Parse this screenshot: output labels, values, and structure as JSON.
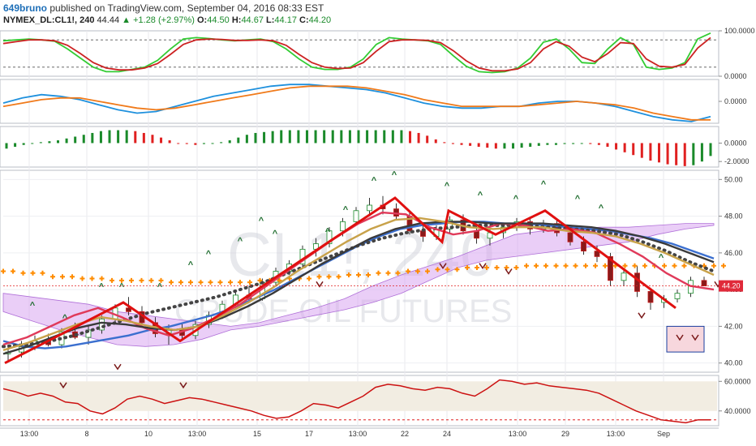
{
  "header": {
    "author": "649bruno",
    "published_text": "published on TradingView.com, September 04, 2016 08:33 EST",
    "symbol": "NYMEX_DL:CL1!, 240",
    "last": "44.44",
    "change": "+1.28 (+2.97%)",
    "open_label": "O:",
    "open_value": "44.50",
    "high_label": "H:",
    "high_value": "44.67",
    "low_label": "L:",
    "low_value": "44.17",
    "close_label": "C:",
    "close_value": "44.20"
  },
  "watermark": {
    "symbol": "CL1!, 240",
    "name": "CRUDE OIL FUTURES"
  },
  "chart_data": [
    {
      "type": "line",
      "panel": "stochastic",
      "y_ticks": [
        "100.0000",
        "0.0000"
      ],
      "ylim": [
        0,
        100
      ],
      "reference_lines": [
        80,
        20
      ],
      "series": [
        {
          "color": "#33cc33",
          "values": [
            78,
            80,
            82,
            80,
            77,
            60,
            40,
            20,
            10,
            10,
            15,
            20,
            35,
            60,
            82,
            85,
            83,
            80,
            78,
            80,
            82,
            76,
            60,
            38,
            20,
            15,
            15,
            20,
            38,
            70,
            85,
            82,
            80,
            78,
            70,
            45,
            22,
            10,
            8,
            10,
            18,
            40,
            75,
            82,
            60,
            30,
            28,
            60,
            85,
            70,
            20,
            15,
            18,
            30,
            82,
            95
          ]
        },
        {
          "color": "#cc2222",
          "values": [
            72,
            76,
            80,
            80,
            78,
            68,
            50,
            30,
            18,
            14,
            14,
            18,
            28,
            48,
            70,
            80,
            82,
            81,
            79,
            79,
            80,
            78,
            68,
            48,
            30,
            20,
            17,
            18,
            30,
            55,
            76,
            80,
            80,
            79,
            74,
            56,
            34,
            18,
            12,
            12,
            16,
            30,
            60,
            76,
            66,
            42,
            32,
            50,
            74,
            72,
            38,
            22,
            20,
            26,
            62,
            85
          ]
        }
      ]
    },
    {
      "type": "line",
      "panel": "macd",
      "y_ticks": [
        "0.0000"
      ],
      "ylim": [
        -1.3,
        1.3
      ],
      "series": [
        {
          "color": "#1e90dd",
          "values": [
            -0.1,
            0.2,
            0.4,
            0.3,
            0.1,
            -0.2,
            -0.5,
            -0.7,
            -0.6,
            -0.3,
            0.0,
            0.3,
            0.5,
            0.7,
            0.9,
            1.0,
            1.0,
            0.9,
            0.8,
            0.7,
            0.5,
            0.2,
            -0.1,
            -0.3,
            -0.4,
            -0.4,
            -0.3,
            -0.3,
            -0.1,
            0.0,
            0.0,
            -0.1,
            -0.3,
            -0.6,
            -0.9,
            -1.1,
            -1.2,
            -0.9
          ]
        },
        {
          "color": "#f07a1a",
          "values": [
            -0.3,
            -0.1,
            0.1,
            0.2,
            0.2,
            0.0,
            -0.2,
            -0.4,
            -0.5,
            -0.4,
            -0.2,
            0.0,
            0.2,
            0.4,
            0.6,
            0.8,
            0.9,
            0.9,
            0.9,
            0.8,
            0.6,
            0.4,
            0.1,
            -0.1,
            -0.3,
            -0.3,
            -0.3,
            -0.3,
            -0.2,
            -0.1,
            0.0,
            -0.1,
            -0.2,
            -0.4,
            -0.7,
            -0.9,
            -1.1,
            -1.1
          ]
        }
      ]
    },
    {
      "type": "bar",
      "panel": "histogram",
      "y_ticks": [
        "0.0000",
        "-2.0000"
      ],
      "ylim": [
        -2.6,
        1.8
      ],
      "values": [
        -0.6,
        -0.4,
        -0.2,
        0.0,
        0.1,
        0.2,
        0.3,
        0.5,
        0.7,
        0.9,
        1.1,
        1.3,
        1.4,
        1.4,
        1.4,
        1.3,
        1.1,
        0.9,
        0.6,
        0.3,
        0.0,
        -0.1,
        -0.2,
        -0.1,
        0.0,
        0.1,
        0.3,
        0.6,
        0.9,
        1.1,
        1.2,
        1.3,
        1.4,
        1.4,
        1.4,
        1.4,
        1.4,
        1.4,
        1.4,
        1.4,
        1.4,
        1.4,
        1.4,
        1.4,
        1.4,
        1.4,
        1.4,
        1.3,
        1.1,
        0.8,
        0.4,
        0.1,
        -0.1,
        -0.2,
        -0.3,
        -0.4,
        -0.5,
        -0.6,
        -0.6,
        -0.6,
        -0.5,
        -0.4,
        -0.3,
        -0.2,
        -0.2,
        -0.1,
        -0.1,
        0.0,
        -0.1,
        -0.2,
        -0.4,
        -0.7,
        -1.0,
        -1.3,
        -1.6,
        -1.9,
        -2.1,
        -2.3,
        -2.4,
        -2.5,
        -2.4,
        -2.0,
        -1.4
      ],
      "up_color": "#1a8a2a",
      "down_color": "#e02020"
    },
    {
      "type": "candlestick",
      "panel": "price",
      "y_ticks": [
        "50.00",
        "48.00",
        "46.00",
        "44.00",
        "42.00",
        "40.00"
      ],
      "ylim": [
        39.5,
        50.5
      ],
      "current_price_label": "44.20",
      "x_ticks": [
        "13:00",
        "8",
        "10",
        "13:00",
        "15",
        "17",
        "13:00",
        "22",
        "24",
        "13:00",
        "29",
        "13:00",
        "Sep"
      ],
      "ohlc": [
        [
          40.5,
          41.0,
          40.1,
          40.6
        ],
        [
          40.6,
          41.2,
          40.3,
          40.9
        ],
        [
          40.9,
          41.5,
          40.7,
          41.2
        ],
        [
          41.2,
          41.6,
          40.9,
          41.0
        ],
        [
          41.0,
          41.9,
          40.8,
          41.7
        ],
        [
          41.7,
          42.2,
          41.3,
          41.4
        ],
        [
          41.4,
          42.0,
          41.0,
          41.8
        ],
        [
          41.8,
          42.6,
          41.6,
          42.4
        ],
        [
          42.4,
          43.2,
          42.2,
          43.0
        ],
        [
          43.0,
          43.6,
          42.6,
          42.8
        ],
        [
          42.8,
          43.1,
          42.0,
          42.2
        ],
        [
          42.2,
          42.5,
          41.4,
          41.6
        ],
        [
          41.6,
          42.1,
          41.0,
          41.8
        ],
        [
          41.8,
          42.2,
          41.2,
          41.5
        ],
        [
          41.5,
          42.3,
          41.3,
          42.1
        ],
        [
          42.1,
          42.8,
          41.9,
          42.6
        ],
        [
          42.6,
          43.4,
          42.4,
          43.2
        ],
        [
          43.2,
          43.9,
          43.0,
          43.7
        ],
        [
          43.7,
          44.2,
          43.3,
          43.5
        ],
        [
          43.5,
          44.6,
          43.4,
          44.4
        ],
        [
          44.4,
          45.2,
          44.2,
          45.0
        ],
        [
          45.0,
          45.6,
          44.8,
          45.4
        ],
        [
          45.4,
          46.4,
          45.2,
          46.2
        ],
        [
          46.2,
          46.8,
          45.8,
          46.5
        ],
        [
          46.5,
          47.4,
          46.3,
          47.2
        ],
        [
          47.2,
          47.9,
          46.9,
          47.7
        ],
        [
          47.7,
          48.5,
          47.5,
          48.3
        ],
        [
          48.3,
          49.0,
          48.0,
          48.6
        ],
        [
          48.6,
          49.1,
          48.1,
          48.4
        ],
        [
          48.4,
          48.7,
          47.8,
          48.0
        ],
        [
          48.0,
          48.2,
          47.0,
          47.2
        ],
        [
          47.2,
          47.6,
          46.6,
          46.9
        ],
        [
          46.9,
          47.5,
          46.7,
          47.3
        ],
        [
          47.3,
          48.0,
          47.1,
          47.8
        ],
        [
          47.8,
          48.1,
          47.0,
          47.2
        ],
        [
          47.2,
          47.5,
          46.5,
          46.8
        ],
        [
          46.8,
          47.3,
          46.4,
          47.1
        ],
        [
          47.1,
          47.6,
          46.8,
          47.4
        ],
        [
          47.4,
          47.9,
          47.2,
          47.7
        ],
        [
          47.7,
          47.9,
          47.0,
          47.3
        ],
        [
          47.3,
          47.8,
          47.1,
          47.6
        ],
        [
          47.6,
          47.8,
          46.9,
          47.1
        ],
        [
          47.1,
          47.4,
          46.4,
          46.6
        ],
        [
          46.6,
          46.9,
          45.9,
          46.1
        ],
        [
          46.1,
          46.4,
          45.5,
          45.8
        ],
        [
          45.8,
          46.0,
          44.2,
          44.5
        ],
        [
          44.5,
          45.1,
          44.2,
          44.9
        ],
        [
          44.9,
          45.3,
          43.6,
          43.9
        ],
        [
          43.9,
          44.1,
          42.9,
          43.3
        ],
        [
          43.3,
          43.7,
          43.0,
          43.5
        ],
        [
          43.5,
          44.0,
          43.3,
          43.8
        ],
        [
          43.8,
          44.7,
          43.6,
          44.5
        ],
        [
          44.5,
          44.7,
          44.2,
          44.2
        ]
      ],
      "series": [
        {
          "name": "",
          "color": "#ff8c00",
          "style": "cross",
          "values": [
            45.0,
            44.9,
            44.7,
            44.6,
            44.5,
            44.5,
            44.4,
            44.4,
            44.4,
            44.5,
            44.6,
            44.7,
            44.8,
            44.9,
            45.0,
            45.1,
            45.2,
            45.2,
            45.3,
            45.3,
            45.3,
            45.3,
            45.3,
            45.3,
            45.3
          ]
        },
        {
          "name": "",
          "color": "#3b6fcf",
          "values": [
            41.2,
            40.9,
            40.8,
            40.9,
            41.1,
            41.3,
            41.5,
            41.8,
            42.0,
            42.3,
            42.6,
            43.0,
            43.5,
            44.0,
            44.6,
            45.2,
            45.8,
            46.4,
            46.9,
            47.3,
            47.5,
            47.6,
            47.7,
            47.7,
            47.6,
            47.6,
            47.5,
            47.4,
            47.3,
            47.2,
            47.0,
            46.8,
            46.5,
            46.1,
            45.7
          ]
        },
        {
          "name": "",
          "color": "#444444",
          "style": "dots",
          "values": [
            40.9,
            41.0,
            41.2,
            41.5,
            41.9,
            42.3,
            42.7,
            43.0,
            43.3,
            43.6,
            44.0,
            44.4,
            44.9,
            45.4,
            45.9,
            46.4,
            46.8,
            47.1,
            47.3,
            47.4,
            47.5,
            47.5,
            47.5,
            47.4,
            47.3,
            47.2,
            47.0,
            46.6,
            46.1,
            45.5,
            45.0
          ]
        },
        {
          "name": "",
          "color": "#e03a5a",
          "values": [
            41.0,
            41.4,
            42.0,
            42.6,
            43.0,
            42.5,
            41.9,
            41.5,
            41.9,
            42.5,
            43.2,
            44.1,
            45.0,
            45.9,
            46.8,
            47.6,
            48.2,
            48.1,
            47.4,
            47.0,
            47.2,
            47.6,
            47.5,
            47.2,
            47.3,
            47.1,
            46.5,
            45.8,
            44.9,
            44.2,
            44.0
          ]
        },
        {
          "name": "",
          "color": "#3a3a3a",
          "values": [
            40.5,
            40.9,
            41.4,
            41.9,
            42.2,
            42.1,
            41.9,
            41.8,
            42.0,
            42.5,
            43.1,
            43.8,
            44.6,
            45.4,
            46.1,
            46.8,
            47.3,
            47.6,
            47.7,
            47.7,
            47.6,
            47.6,
            47.6,
            47.5,
            47.4,
            47.2,
            46.9,
            46.5,
            46.0,
            45.5
          ]
        },
        {
          "name": "",
          "color": "#c8a24a",
          "values": [
            40.7,
            41.1,
            41.6,
            42.1,
            42.5,
            42.3,
            42.0,
            41.8,
            42.0,
            42.6,
            43.3,
            44.1,
            45.0,
            45.8,
            46.6,
            47.3,
            47.8,
            47.9,
            47.7,
            47.4,
            47.3,
            47.4,
            47.4,
            47.2,
            47.1,
            46.9,
            46.5,
            46.0,
            45.4,
            44.8
          ]
        }
      ],
      "zigzag": [
        40.0,
        43.3,
        41.2,
        49.0,
        46.6,
        48.3,
        47.0,
        48.3,
        43.0
      ],
      "ichimoku_cloud": true
    },
    {
      "type": "line",
      "panel": "rsi",
      "y_ticks": [
        "60.0000",
        "40.0000"
      ],
      "ylim": [
        30,
        64
      ],
      "reference_line": 34,
      "series": [
        {
          "color": "#cc1111",
          "values": [
            55,
            53,
            50,
            52,
            50,
            46,
            45,
            40,
            38,
            42,
            48,
            50,
            48,
            45,
            47,
            49,
            48,
            46,
            44,
            42,
            40,
            37,
            35,
            36,
            40,
            45,
            44,
            42,
            46,
            50,
            56,
            58,
            57,
            55,
            54,
            56,
            55,
            52,
            50,
            55,
            61,
            60,
            58,
            59,
            57,
            56,
            55,
            54,
            52,
            48,
            44,
            40,
            37,
            34,
            33,
            32,
            34,
            34
          ]
        }
      ]
    }
  ]
}
